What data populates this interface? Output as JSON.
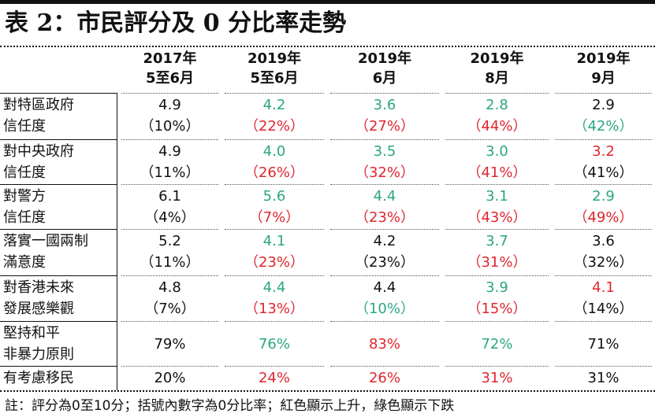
{
  "title": "表 2：市民評分及 0 分比率走勢",
  "columns": [
    {
      "line1": "2017年",
      "line2": "5至6月"
    },
    {
      "line1": "2019年",
      "line2": "5至6月"
    },
    {
      "line1": "2019年",
      "line2": "6月"
    },
    {
      "line1": "2019年",
      "line2": "8月"
    },
    {
      "line1": "2019年",
      "line2": "9月"
    }
  ],
  "rows": [
    {
      "label": [
        "對特區政府",
        "信任度"
      ],
      "cells": [
        {
          "score": "4.9",
          "pct": "（10%）",
          "sc": "flat",
          "pc": "flat"
        },
        {
          "score": "4.2",
          "pct": "（22%）",
          "sc": "down",
          "pc": "up"
        },
        {
          "score": "3.6",
          "pct": "（27%）",
          "sc": "down",
          "pc": "up"
        },
        {
          "score": "2.8",
          "pct": "（44%）",
          "sc": "down",
          "pc": "up"
        },
        {
          "score": "2.9",
          "pct": "（42%）",
          "sc": "flat",
          "pc": "down"
        }
      ]
    },
    {
      "label": [
        "對中央政府",
        "信任度"
      ],
      "cells": [
        {
          "score": "4.9",
          "pct": "（11%）",
          "sc": "flat",
          "pc": "flat"
        },
        {
          "score": "4.0",
          "pct": "（26%）",
          "sc": "down",
          "pc": "up"
        },
        {
          "score": "3.5",
          "pct": "（32%）",
          "sc": "down",
          "pc": "up"
        },
        {
          "score": "3.0",
          "pct": "（41%）",
          "sc": "down",
          "pc": "up"
        },
        {
          "score": "3.2",
          "pct": "（41%）",
          "sc": "up",
          "pc": "flat"
        }
      ]
    },
    {
      "label": [
        "對警方",
        "信任度"
      ],
      "cells": [
        {
          "score": "6.1",
          "pct": "（4%）",
          "sc": "flat",
          "pc": "flat"
        },
        {
          "score": "5.6",
          "pct": "（7%）",
          "sc": "down",
          "pc": "up"
        },
        {
          "score": "4.4",
          "pct": "（23%）",
          "sc": "down",
          "pc": "up"
        },
        {
          "score": "3.1",
          "pct": "（43%）",
          "sc": "down",
          "pc": "up"
        },
        {
          "score": "2.9",
          "pct": "（49%）",
          "sc": "down",
          "pc": "up"
        }
      ]
    },
    {
      "label": [
        "落實一國兩制",
        "滿意度"
      ],
      "cells": [
        {
          "score": "5.2",
          "pct": "（11%）",
          "sc": "flat",
          "pc": "flat"
        },
        {
          "score": "4.1",
          "pct": "（23%）",
          "sc": "down",
          "pc": "up"
        },
        {
          "score": "4.2",
          "pct": "（23%）",
          "sc": "flat",
          "pc": "flat"
        },
        {
          "score": "3.7",
          "pct": "（31%）",
          "sc": "down",
          "pc": "up"
        },
        {
          "score": "3.6",
          "pct": "（32%）",
          "sc": "flat",
          "pc": "flat"
        }
      ]
    },
    {
      "label": [
        "對香港未來",
        "發展感樂觀"
      ],
      "cells": [
        {
          "score": "4.8",
          "pct": "（7%）",
          "sc": "flat",
          "pc": "flat"
        },
        {
          "score": "4.4",
          "pct": "（13%）",
          "sc": "down",
          "pc": "up"
        },
        {
          "score": "4.4",
          "pct": "（10%）",
          "sc": "flat",
          "pc": "down"
        },
        {
          "score": "3.9",
          "pct": "（15%）",
          "sc": "down",
          "pc": "up"
        },
        {
          "score": "4.1",
          "pct": "（14%）",
          "sc": "up",
          "pc": "flat"
        }
      ]
    },
    {
      "label": [
        "堅持和平",
        "非暴力原則"
      ],
      "cells": [
        {
          "score": "79%",
          "sc": "flat"
        },
        {
          "score": "76%",
          "sc": "down"
        },
        {
          "score": "83%",
          "sc": "up"
        },
        {
          "score": "72%",
          "sc": "down"
        },
        {
          "score": "71%",
          "sc": "flat"
        }
      ]
    },
    {
      "label": [
        "有考慮移民"
      ],
      "cells": [
        {
          "score": "20%",
          "sc": "flat"
        },
        {
          "score": "24%",
          "sc": "up"
        },
        {
          "score": "26%",
          "sc": "up"
        },
        {
          "score": "31%",
          "sc": "up"
        },
        {
          "score": "31%",
          "sc": "flat"
        }
      ]
    }
  ],
  "footnote": "註：評分為0至10分；括號內數字為0分比率；紅色顯示上升，綠色顯示下跌",
  "colors": {
    "up": "#e0262f",
    "down": "#2aa783",
    "text": "#111111"
  }
}
